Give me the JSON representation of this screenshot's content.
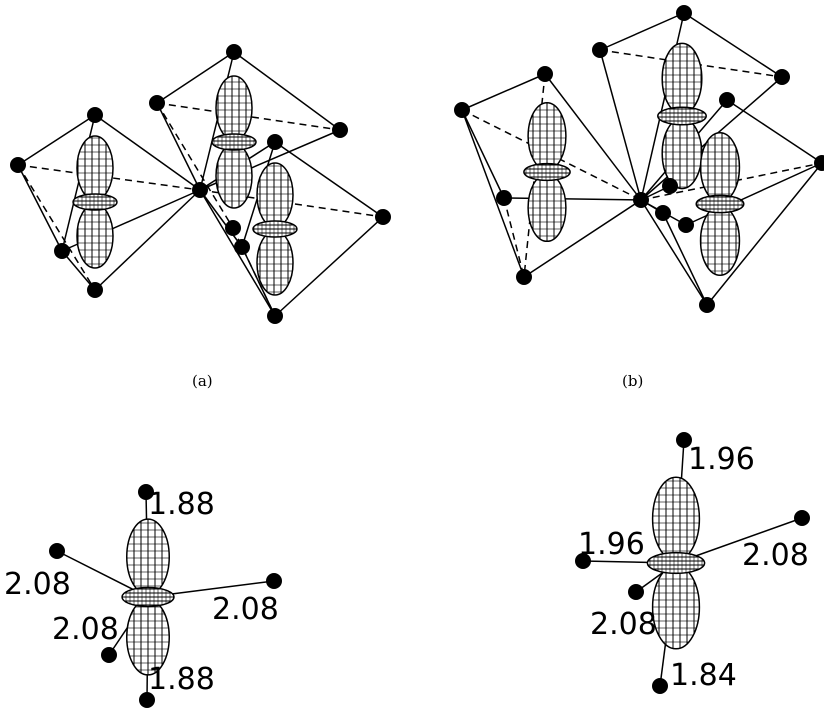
{
  "panels": {
    "a": {
      "caption": "(a)"
    },
    "b": {
      "caption": "(b)"
    }
  },
  "bond_lengths": {
    "c": {
      "top": "1.88",
      "left": "2.08",
      "front": "2.08",
      "right": "2.08",
      "bottom": "1.88"
    },
    "d": {
      "top": "1.96",
      "left": "1.96",
      "right": "2.08",
      "front": "2.08",
      "bottom": "1.84"
    }
  },
  "colors": {
    "ink": "#000000",
    "background": "#ffffff"
  },
  "icons": [
    "atom-icon",
    "dz2-orbital-icon"
  ]
}
